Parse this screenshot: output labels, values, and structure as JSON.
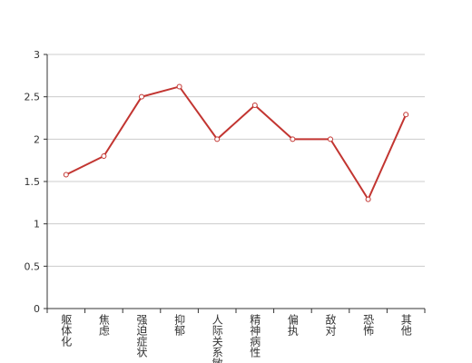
{
  "chart_data": {
    "type": "line",
    "categories": [
      "躯体化",
      "焦虑",
      "强迫症状",
      "抑郁",
      "人际关系敏感",
      "精神病性",
      "偏执",
      "敌对",
      "恐怖",
      "其他"
    ],
    "values": [
      1.58,
      1.8,
      2.5,
      2.62,
      2.0,
      2.4,
      2.0,
      2.0,
      1.29,
      2.29
    ],
    "color": "#c23531",
    "ylim": [
      0,
      3
    ],
    "yticks": [
      0,
      0.5,
      1,
      1.5,
      2,
      2.5,
      3
    ],
    "grid": true
  }
}
